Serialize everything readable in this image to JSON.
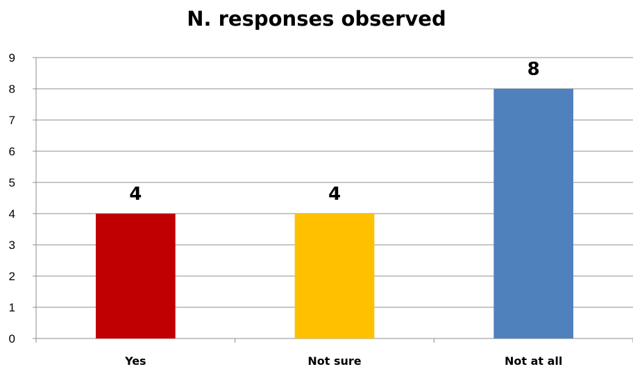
{
  "chart_data": {
    "type": "bar",
    "title": "N. responses observed",
    "categories": [
      "Yes",
      "Not sure",
      "Not at all"
    ],
    "values": [
      4,
      4,
      8
    ],
    "bar_colors": [
      "#C00000",
      "#FFC000",
      "#4F81BD"
    ],
    "ylim": [
      0,
      9
    ],
    "y_ticks": [
      0,
      1,
      2,
      3,
      4,
      5,
      6,
      7,
      8,
      9
    ],
    "grid": true,
    "legend": "none",
    "data_labels": [
      "4",
      "4",
      "8"
    ]
  }
}
